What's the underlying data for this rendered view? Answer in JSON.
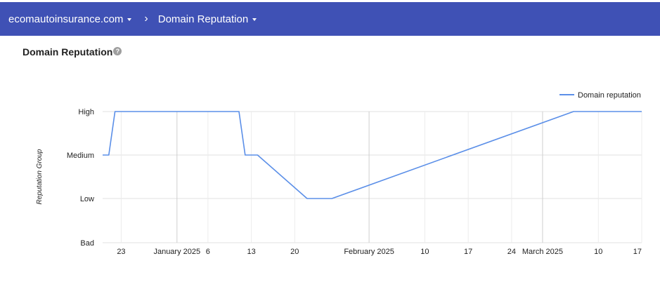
{
  "header": {
    "domain": "ecomautoinsurance.com",
    "separator": "›",
    "section": "Domain Reputation"
  },
  "page": {
    "title": "Domain Reputation",
    "help_symbol": "?"
  },
  "colors": {
    "header_bg": "#3f51b5",
    "series_line": "#5b8fe8",
    "grid": "#e0e0e0"
  },
  "chart_data": {
    "type": "line",
    "title": "",
    "xlabel": "",
    "ylabel": "Reputation Group",
    "y_categories": [
      "Bad",
      "Low",
      "Medium",
      "High"
    ],
    "x_range": [
      "2024-12-20",
      "2025-03-17"
    ],
    "x_ticks": [
      {
        "date": "2024-12-23",
        "label": "23"
      },
      {
        "date": "2025-01-01",
        "label": "January 2025"
      },
      {
        "date": "2025-01-06",
        "label": "6"
      },
      {
        "date": "2025-01-13",
        "label": "13"
      },
      {
        "date": "2025-01-20",
        "label": "20"
      },
      {
        "date": "2025-02-01",
        "label": "February 2025"
      },
      {
        "date": "2025-02-10",
        "label": "10"
      },
      {
        "date": "2025-02-17",
        "label": "17"
      },
      {
        "date": "2025-02-24",
        "label": "24"
      },
      {
        "date": "2025-03-01",
        "label": "March 2025"
      },
      {
        "date": "2025-03-10",
        "label": "10"
      },
      {
        "date": "2025-03-17",
        "label": "17"
      }
    ],
    "major_gridlines": [
      "2025-01-01",
      "2025-02-01",
      "2025-03-01"
    ],
    "legend": {
      "position": "top-right",
      "entries": [
        "Domain reputation"
      ]
    },
    "series": [
      {
        "name": "Domain reputation",
        "points": [
          {
            "x": "2024-12-20",
            "y": "Medium"
          },
          {
            "x": "2024-12-21",
            "y": "Medium"
          },
          {
            "x": "2024-12-22",
            "y": "High"
          },
          {
            "x": "2025-01-11",
            "y": "High"
          },
          {
            "x": "2025-01-12",
            "y": "Medium"
          },
          {
            "x": "2025-01-14",
            "y": "Medium"
          },
          {
            "x": "2025-01-22",
            "y": "Low"
          },
          {
            "x": "2025-01-26",
            "y": "Low"
          },
          {
            "x": "2025-03-06",
            "y": "High"
          },
          {
            "x": "2025-03-17",
            "y": "High"
          }
        ]
      }
    ]
  }
}
